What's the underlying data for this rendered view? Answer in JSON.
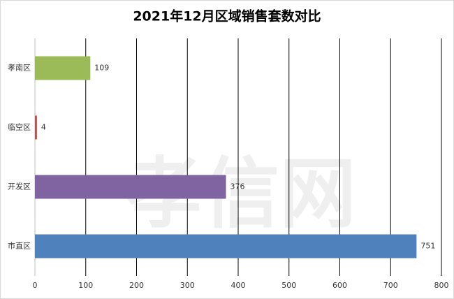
{
  "chart_data": {
    "type": "bar",
    "orientation": "horizontal",
    "title": "2021年12月区域销售套数对比",
    "watermark": "孝信网",
    "categories": [
      "孝南区",
      "临空区",
      "开发区",
      "市直区"
    ],
    "values": [
      109,
      4,
      376,
      751
    ],
    "colors": [
      "#9bbb59",
      "#c0504d",
      "#8064a2",
      "#4f81bd"
    ],
    "xlim": [
      0,
      800
    ],
    "xticks": [
      0,
      100,
      200,
      300,
      400,
      500,
      600,
      700,
      800
    ],
    "grid": true
  }
}
